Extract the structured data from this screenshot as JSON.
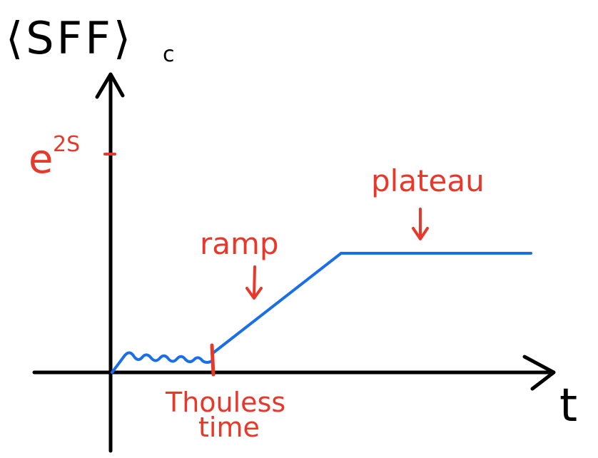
{
  "axes": {
    "y_label": "⟨SFF⟩",
    "y_label_subscript": "c",
    "x_label": "t",
    "y_tick_label_base": "e",
    "y_tick_label_exponent": "2S"
  },
  "annotations": {
    "plateau": "plateau",
    "ramp": "ramp",
    "thouless_line1": "Thouless",
    "thouless_line2": "time"
  },
  "colors": {
    "axes": "#000000",
    "curve": "#1a6fe8",
    "annotation": "#e8382a"
  }
}
